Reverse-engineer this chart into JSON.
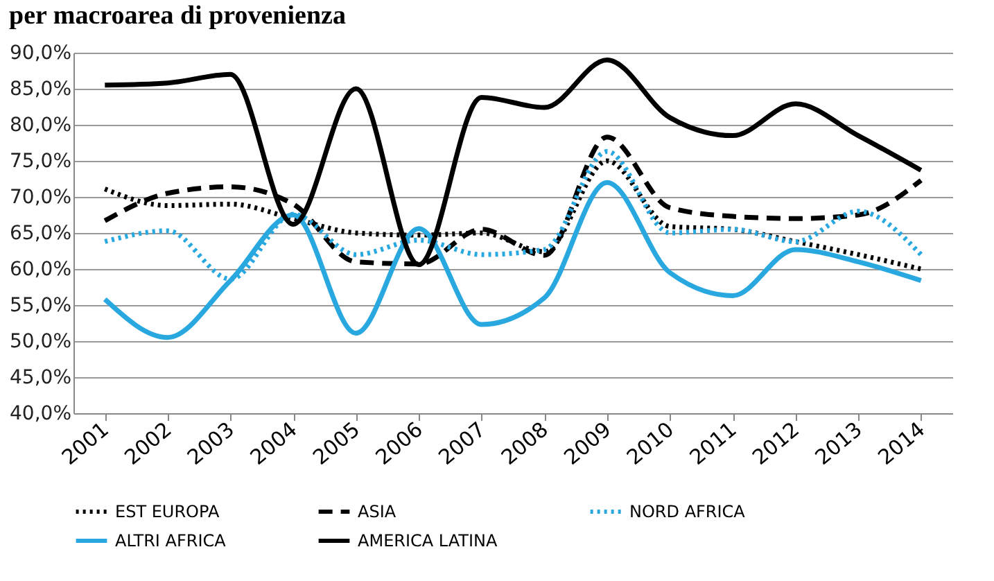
{
  "chart_data": {
    "type": "line",
    "title": "per macroarea di provenienza",
    "categories": [
      "2001",
      "2002",
      "2003",
      "2004",
      "2005",
      "2006",
      "2007",
      "2008",
      "2009",
      "2010",
      "2011",
      "2012",
      "2013",
      "2014"
    ],
    "series": [
      {
        "name": "EST EUROPA",
        "color": "#000000",
        "line_style": "dotted",
        "values": [
          71.1,
          68.8,
          69,
          67,
          65,
          64.7,
          65,
          62.4,
          75,
          65.9,
          65.5,
          63.8,
          62,
          60
        ]
      },
      {
        "name": "ASIA",
        "color": "#000000",
        "line_style": "dashed",
        "values": [
          66.7,
          70.5,
          71.4,
          69,
          61,
          60.7,
          65.5,
          61.9,
          78.3,
          68.5,
          67.3,
          67,
          67.5,
          72.3
        ]
      },
      {
        "name": "NORD AFRICA",
        "color": "#29a8e0",
        "line_style": "dotted",
        "values": [
          63.8,
          65.3,
          58.6,
          67.6,
          62,
          64,
          62,
          62.7,
          76.3,
          65,
          65.5,
          63.8,
          68,
          62
        ]
      },
      {
        "name": "ALTRI AFRICA",
        "color": "#29a8e0",
        "line_style": "solid",
        "values": [
          55.8,
          50.5,
          58.4,
          67.5,
          51.1,
          65.6,
          52.3,
          56,
          72,
          59.5,
          56.3,
          62.7,
          61,
          58.4
        ]
      },
      {
        "name": "AMERICA LATINA",
        "color": "#000000",
        "line_style": "solid",
        "values": [
          85.5,
          85.8,
          87,
          66.2,
          85,
          60.6,
          83.8,
          82.4,
          89,
          81,
          78.5,
          82.9,
          78.5,
          73.7
        ]
      }
    ],
    "ylim": [
      40,
      90
    ],
    "yticks": [
      {
        "value": 40,
        "label": "40,0%"
      },
      {
        "value": 45,
        "label": "45,0%"
      },
      {
        "value": 50,
        "label": "50,0%"
      },
      {
        "value": 55,
        "label": "55,0%"
      },
      {
        "value": 60,
        "label": "60,0%"
      },
      {
        "value": 65,
        "label": "65,0%"
      },
      {
        "value": 70,
        "label": "70,0%"
      },
      {
        "value": 75,
        "label": "75,0%"
      },
      {
        "value": 80,
        "label": "80,0%"
      },
      {
        "value": 85,
        "label": "85,0%"
      },
      {
        "value": 90,
        "label": "90,0%"
      }
    ],
    "grid": "y",
    "legend": "bottom",
    "marker": "none"
  }
}
